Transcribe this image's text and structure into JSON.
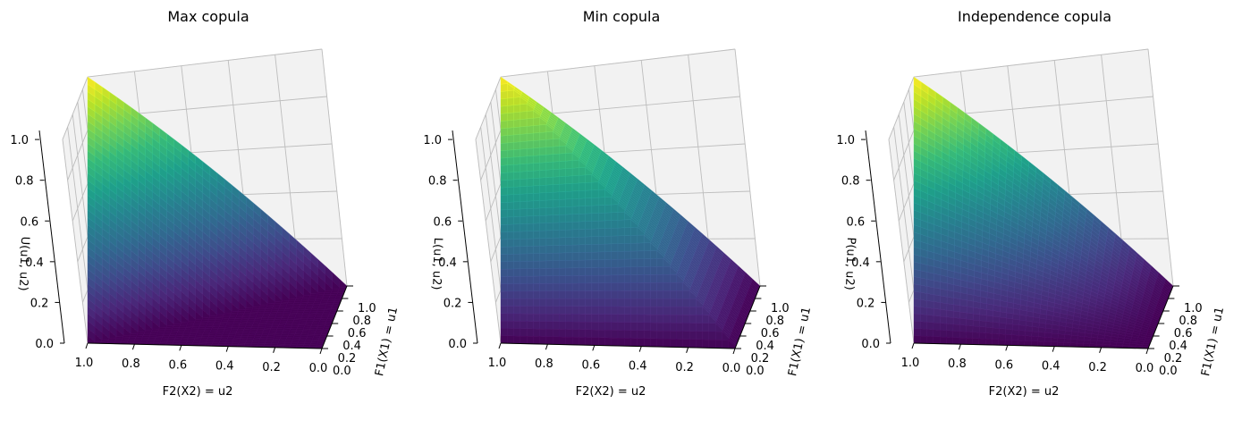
{
  "figure": {
    "background": "#ffffff",
    "colormap": "viridis"
  },
  "chart_data": [
    {
      "type": "surface",
      "title": "Max copula",
      "function": "max",
      "xlabel": "F2(X2) = u2",
      "ylabel": "F1(X1) = u1",
      "zlabel": "U(u1, u2)",
      "x_ticks": [
        "1.0",
        "0.8",
        "0.6",
        "0.4",
        "0.2",
        "0.0"
      ],
      "y_ticks": [
        "0.0",
        "0.2",
        "0.4",
        "0.6",
        "0.8",
        "1.0"
      ],
      "z_ticks": [
        "0.0",
        "0.2",
        "0.4",
        "0.6",
        "0.8",
        "1.0"
      ],
      "xlim": [
        0,
        1
      ],
      "ylim": [
        0,
        1
      ],
      "zlim": [
        0,
        1
      ],
      "grid": true
    },
    {
      "type": "surface",
      "title": "Min copula",
      "function": "min",
      "xlabel": "F2(X2) = u2",
      "ylabel": "F1(X1) = u1",
      "zlabel": "L(u1, u2)",
      "x_ticks": [
        "1.0",
        "0.8",
        "0.6",
        "0.4",
        "0.2",
        "0.0"
      ],
      "y_ticks": [
        "0.0",
        "0.2",
        "0.4",
        "0.6",
        "0.8",
        "1.0"
      ],
      "z_ticks": [
        "0.0",
        "0.2",
        "0.4",
        "0.6",
        "0.8",
        "1.0"
      ],
      "xlim": [
        0,
        1
      ],
      "ylim": [
        0,
        1
      ],
      "zlim": [
        0,
        1
      ],
      "grid": true
    },
    {
      "type": "surface",
      "title": "Independence copula",
      "function": "product",
      "xlabel": "F2(X2) = u2",
      "ylabel": "F1(X1) = u1",
      "zlabel": "P(u1, u2)",
      "x_ticks": [
        "1.0",
        "0.8",
        "0.6",
        "0.4",
        "0.2",
        "0.0"
      ],
      "y_ticks": [
        "0.0",
        "0.2",
        "0.4",
        "0.6",
        "0.8",
        "1.0"
      ],
      "z_ticks": [
        "0.0",
        "0.2",
        "0.4",
        "0.6",
        "0.8",
        "1.0"
      ],
      "xlim": [
        0,
        1
      ],
      "ylim": [
        0,
        1
      ],
      "zlim": [
        0,
        1
      ],
      "grid": true
    }
  ]
}
